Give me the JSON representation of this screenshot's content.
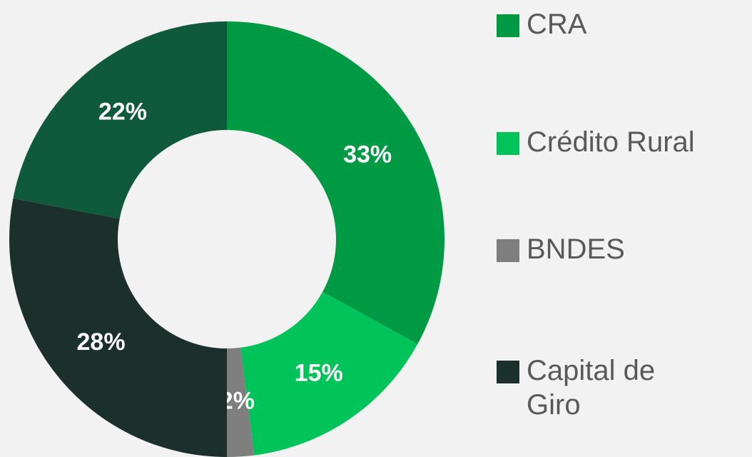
{
  "chart_data": {
    "type": "pie",
    "categories": [
      "CRA",
      "Crédito Rural",
      "BNDES",
      "Capital de Giro",
      null
    ],
    "values": [
      33,
      15,
      2,
      28,
      22
    ],
    "value_labels": [
      "33%",
      "15%",
      "2%",
      "28%",
      "22%"
    ],
    "colors": [
      "#009a44",
      "#00c35a",
      "#7f7f7f",
      "#1b302b",
      "#0f5a3c"
    ],
    "donut": true
  }
}
